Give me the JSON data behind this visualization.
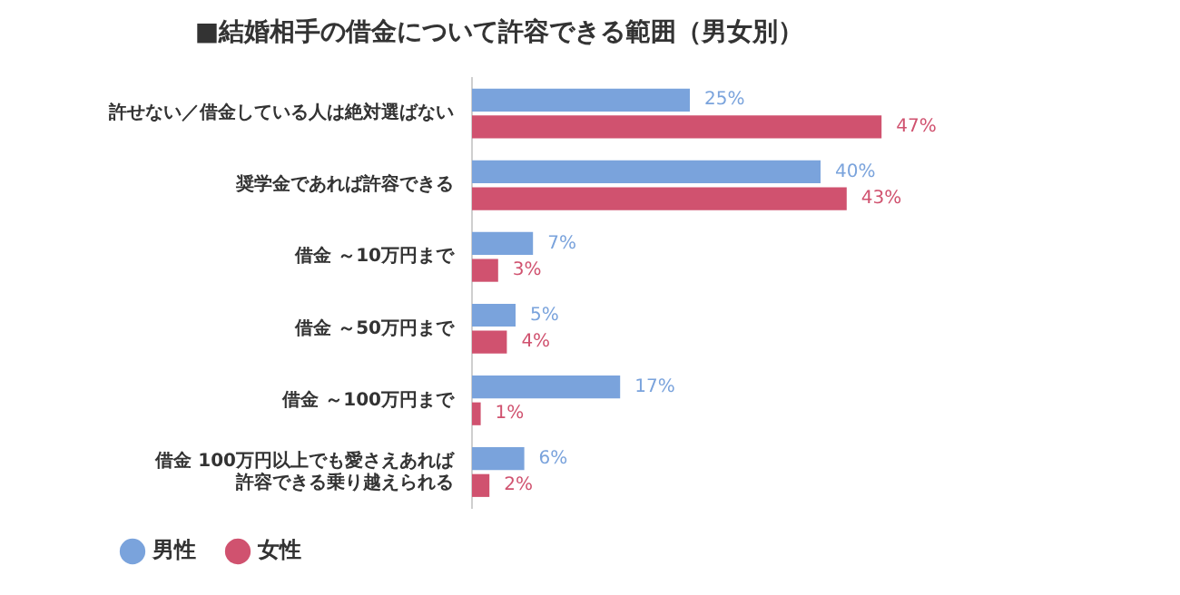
{
  "chart_data": {
    "type": "bar",
    "orientation": "horizontal",
    "title": "■結婚相手の借金について許容できる範囲（男女別）",
    "categories": [
      "許せない／借金している人は絶対選ばない",
      "奨学金であれば許容できる",
      "借金 ～10万円まで",
      "借金 ～50万円まで",
      "借金 ～100万円まで",
      "借金 100万円以上でも愛さえあれば許容できる乗り越えられる"
    ],
    "series": [
      {
        "name": "男性",
        "color": "#7aa3dc",
        "values": [
          25,
          40,
          7,
          5,
          17,
          6
        ],
        "value_labels": [
          "25%",
          "40%",
          "7%",
          "5%",
          "17%",
          "6%"
        ]
      },
      {
        "name": "女性",
        "color": "#d0526f",
        "values": [
          47,
          43,
          3,
          4,
          1,
          2
        ],
        "value_labels": [
          "47%",
          "43%",
          "3%",
          "4%",
          "1%",
          "2%"
        ]
      }
    ],
    "tick_labels": "y",
    "grid": false,
    "legend": "bottom left"
  }
}
